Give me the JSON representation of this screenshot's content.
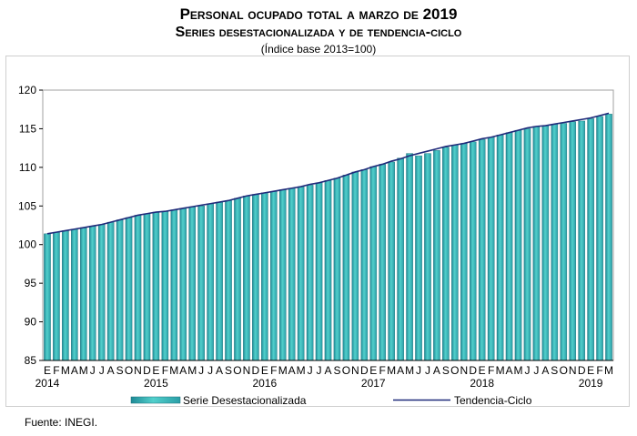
{
  "title": "Personal ocupado total a marzo de 2019",
  "subtitle": "Series desestacionalizada y de tendencia-ciclo",
  "note": "(Índice base 2013=100)",
  "source": "Fuente: INEGI.",
  "colors": {
    "bar": "#3fb6b8",
    "bar_dark": "#1f8a96",
    "line": "#1f2a7a",
    "axis": "#000000",
    "plot_border": "#a0a0a0"
  },
  "chart_data": {
    "type": "bar",
    "ylim": [
      85,
      120
    ],
    "yticks": [
      "120",
      "115",
      "110",
      "105",
      "100",
      "95",
      "90",
      "85"
    ],
    "month_labels": [
      "E",
      "F",
      "M",
      "A",
      "M",
      "J",
      "J",
      "A",
      "S",
      "O",
      "N",
      "D",
      "E",
      "F",
      "M",
      "A",
      "M",
      "J",
      "J",
      "A",
      "S",
      "O",
      "N",
      "D",
      "E",
      "F",
      "M",
      "A",
      "M",
      "J",
      "J",
      "A",
      "S",
      "O",
      "N",
      "D",
      "E",
      "F",
      "M",
      "A",
      "M",
      "J",
      "J",
      "A",
      "S",
      "O",
      "N",
      "D",
      "E",
      "F",
      "M",
      "A",
      "M",
      "J",
      "J",
      "A",
      "S",
      "O",
      "N",
      "D",
      "E",
      "F",
      "M"
    ],
    "year_labels": [
      "2014",
      "2015",
      "2016",
      "2017",
      "2018",
      "2019"
    ],
    "series": [
      {
        "name": "Serie Desestacionalizada",
        "values": [
          101.4,
          101.6,
          101.8,
          102.0,
          102.2,
          102.4,
          102.6,
          102.9,
          103.2,
          103.5,
          103.8,
          104.0,
          104.2,
          104.3,
          104.5,
          104.7,
          104.9,
          105.0,
          105.3,
          105.5,
          105.7,
          106.0,
          106.3,
          106.5,
          106.7,
          106.9,
          107.1,
          107.3,
          107.5,
          107.7,
          108.0,
          108.3,
          108.6,
          109.0,
          109.4,
          109.7,
          110.1,
          110.4,
          110.7,
          111.2,
          111.8,
          111.5,
          111.8,
          112.2,
          112.6,
          112.9,
          113.1,
          113.3,
          113.6,
          113.9,
          114.2,
          114.5,
          114.8,
          115.0,
          115.3,
          115.4,
          115.6,
          115.7,
          115.9,
          116.0,
          116.3,
          116.6,
          116.9
        ]
      },
      {
        "name": "Tendencia-Ciclo",
        "values": [
          101.4,
          101.6,
          101.8,
          102.0,
          102.2,
          102.4,
          102.6,
          102.9,
          103.2,
          103.5,
          103.8,
          104.0,
          104.2,
          104.3,
          104.5,
          104.7,
          104.9,
          105.1,
          105.3,
          105.5,
          105.7,
          106.0,
          106.3,
          106.5,
          106.7,
          106.9,
          107.1,
          107.3,
          107.5,
          107.8,
          108.0,
          108.3,
          108.6,
          109.0,
          109.4,
          109.7,
          110.1,
          110.4,
          110.8,
          111.1,
          111.5,
          111.8,
          112.1,
          112.4,
          112.7,
          112.9,
          113.1,
          113.4,
          113.7,
          113.9,
          114.2,
          114.5,
          114.8,
          115.1,
          115.3,
          115.4,
          115.6,
          115.8,
          116.0,
          116.2,
          116.4,
          116.7,
          117.0
        ]
      }
    ]
  }
}
